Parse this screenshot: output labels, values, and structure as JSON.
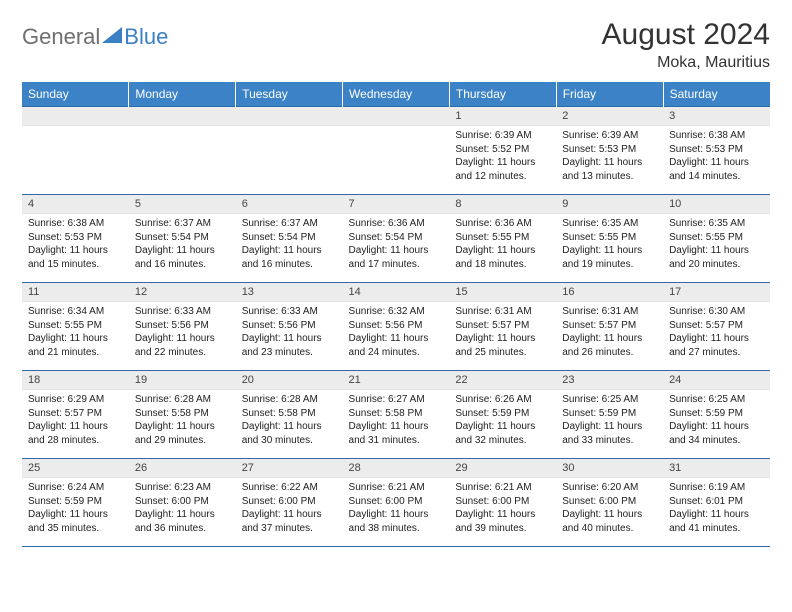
{
  "logo": {
    "part1": "General",
    "part2": "Blue"
  },
  "title": "August 2024",
  "location": "Moka, Mauritius",
  "colors": {
    "header_bg": "#3b82c7",
    "header_text": "#ffffff",
    "row_border": "#2f6aa8",
    "daynum_bg": "#ececec",
    "logo_gray": "#6f6f6f",
    "logo_blue": "#3b7fc4"
  },
  "weekdays": [
    "Sunday",
    "Monday",
    "Tuesday",
    "Wednesday",
    "Thursday",
    "Friday",
    "Saturday"
  ],
  "weeks": [
    [
      null,
      null,
      null,
      null,
      {
        "n": "1",
        "sr": "6:39 AM",
        "ss": "5:52 PM",
        "dl": "11 hours and 12 minutes."
      },
      {
        "n": "2",
        "sr": "6:39 AM",
        "ss": "5:53 PM",
        "dl": "11 hours and 13 minutes."
      },
      {
        "n": "3",
        "sr": "6:38 AM",
        "ss": "5:53 PM",
        "dl": "11 hours and 14 minutes."
      }
    ],
    [
      {
        "n": "4",
        "sr": "6:38 AM",
        "ss": "5:53 PM",
        "dl": "11 hours and 15 minutes."
      },
      {
        "n": "5",
        "sr": "6:37 AM",
        "ss": "5:54 PM",
        "dl": "11 hours and 16 minutes."
      },
      {
        "n": "6",
        "sr": "6:37 AM",
        "ss": "5:54 PM",
        "dl": "11 hours and 16 minutes."
      },
      {
        "n": "7",
        "sr": "6:36 AM",
        "ss": "5:54 PM",
        "dl": "11 hours and 17 minutes."
      },
      {
        "n": "8",
        "sr": "6:36 AM",
        "ss": "5:55 PM",
        "dl": "11 hours and 18 minutes."
      },
      {
        "n": "9",
        "sr": "6:35 AM",
        "ss": "5:55 PM",
        "dl": "11 hours and 19 minutes."
      },
      {
        "n": "10",
        "sr": "6:35 AM",
        "ss": "5:55 PM",
        "dl": "11 hours and 20 minutes."
      }
    ],
    [
      {
        "n": "11",
        "sr": "6:34 AM",
        "ss": "5:55 PM",
        "dl": "11 hours and 21 minutes."
      },
      {
        "n": "12",
        "sr": "6:33 AM",
        "ss": "5:56 PM",
        "dl": "11 hours and 22 minutes."
      },
      {
        "n": "13",
        "sr": "6:33 AM",
        "ss": "5:56 PM",
        "dl": "11 hours and 23 minutes."
      },
      {
        "n": "14",
        "sr": "6:32 AM",
        "ss": "5:56 PM",
        "dl": "11 hours and 24 minutes."
      },
      {
        "n": "15",
        "sr": "6:31 AM",
        "ss": "5:57 PM",
        "dl": "11 hours and 25 minutes."
      },
      {
        "n": "16",
        "sr": "6:31 AM",
        "ss": "5:57 PM",
        "dl": "11 hours and 26 minutes."
      },
      {
        "n": "17",
        "sr": "6:30 AM",
        "ss": "5:57 PM",
        "dl": "11 hours and 27 minutes."
      }
    ],
    [
      {
        "n": "18",
        "sr": "6:29 AM",
        "ss": "5:57 PM",
        "dl": "11 hours and 28 minutes."
      },
      {
        "n": "19",
        "sr": "6:28 AM",
        "ss": "5:58 PM",
        "dl": "11 hours and 29 minutes."
      },
      {
        "n": "20",
        "sr": "6:28 AM",
        "ss": "5:58 PM",
        "dl": "11 hours and 30 minutes."
      },
      {
        "n": "21",
        "sr": "6:27 AM",
        "ss": "5:58 PM",
        "dl": "11 hours and 31 minutes."
      },
      {
        "n": "22",
        "sr": "6:26 AM",
        "ss": "5:59 PM",
        "dl": "11 hours and 32 minutes."
      },
      {
        "n": "23",
        "sr": "6:25 AM",
        "ss": "5:59 PM",
        "dl": "11 hours and 33 minutes."
      },
      {
        "n": "24",
        "sr": "6:25 AM",
        "ss": "5:59 PM",
        "dl": "11 hours and 34 minutes."
      }
    ],
    [
      {
        "n": "25",
        "sr": "6:24 AM",
        "ss": "5:59 PM",
        "dl": "11 hours and 35 minutes."
      },
      {
        "n": "26",
        "sr": "6:23 AM",
        "ss": "6:00 PM",
        "dl": "11 hours and 36 minutes."
      },
      {
        "n": "27",
        "sr": "6:22 AM",
        "ss": "6:00 PM",
        "dl": "11 hours and 37 minutes."
      },
      {
        "n": "28",
        "sr": "6:21 AM",
        "ss": "6:00 PM",
        "dl": "11 hours and 38 minutes."
      },
      {
        "n": "29",
        "sr": "6:21 AM",
        "ss": "6:00 PM",
        "dl": "11 hours and 39 minutes."
      },
      {
        "n": "30",
        "sr": "6:20 AM",
        "ss": "6:00 PM",
        "dl": "11 hours and 40 minutes."
      },
      {
        "n": "31",
        "sr": "6:19 AM",
        "ss": "6:01 PM",
        "dl": "11 hours and 41 minutes."
      }
    ]
  ],
  "labels": {
    "sunrise": "Sunrise:",
    "sunset": "Sunset:",
    "daylight": "Daylight:"
  }
}
